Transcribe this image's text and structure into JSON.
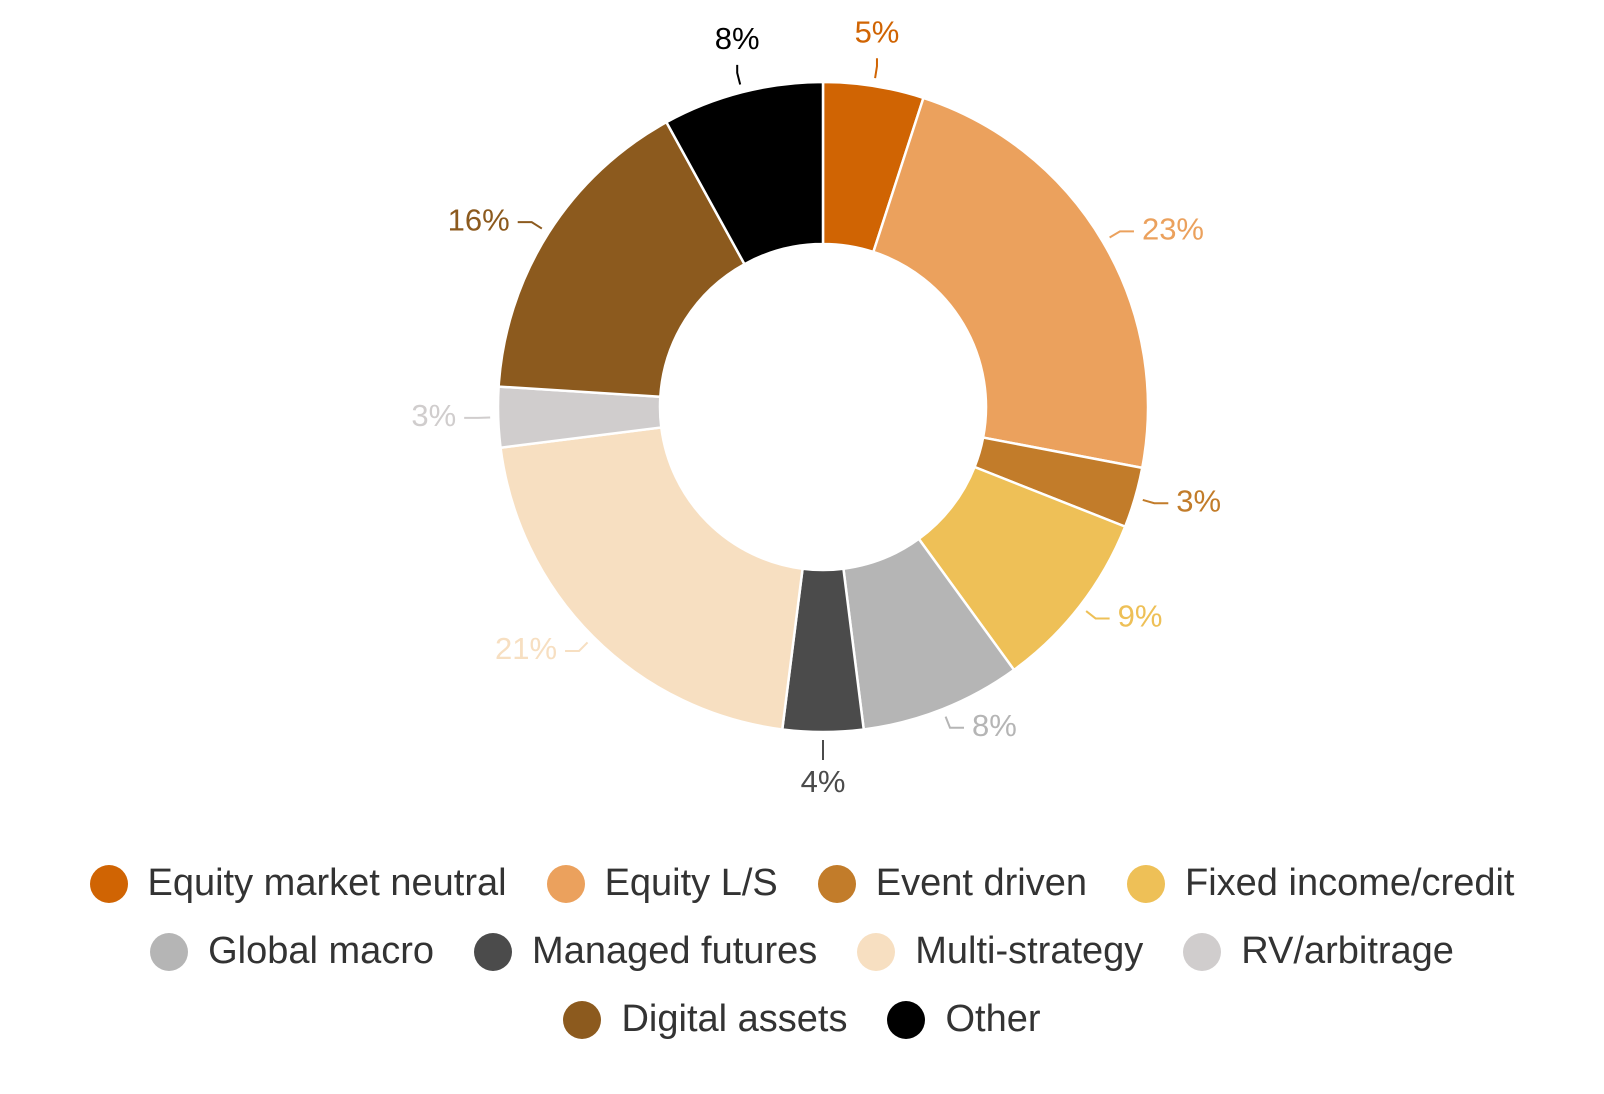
{
  "chart_data": {
    "type": "pie",
    "variant": "donut",
    "title": "",
    "unit": "%",
    "categories": [
      "Equity market neutral",
      "Equity L/S",
      "Event driven",
      "Fixed income/credit",
      "Global macro",
      "Managed futures",
      "Multi-strategy",
      "RV/arbitrage",
      "Digital assets",
      "Other"
    ],
    "values": [
      5,
      23,
      3,
      9,
      8,
      4,
      21,
      3,
      16,
      8
    ],
    "labels": [
      "5%",
      "23%",
      "3%",
      "9%",
      "8%",
      "4%",
      "21%",
      "3%",
      "16%",
      "8%"
    ],
    "colors": [
      "#D06403",
      "#EBA15D",
      "#C27C2A",
      "#EEC057",
      "#B5B5B5",
      "#4B4B4B",
      "#F7DFC1",
      "#D0CDCD",
      "#8C5A1E",
      "#000000"
    ],
    "label_colors": [
      "#D06403",
      "#EBA15D",
      "#C27C2A",
      "#EEC057",
      "#B5B5B5",
      "#4B4B4B",
      "#F7DFC1",
      "#D0CDCD",
      "#8C5A1E",
      "#000000"
    ],
    "legend_position": "bottom"
  }
}
